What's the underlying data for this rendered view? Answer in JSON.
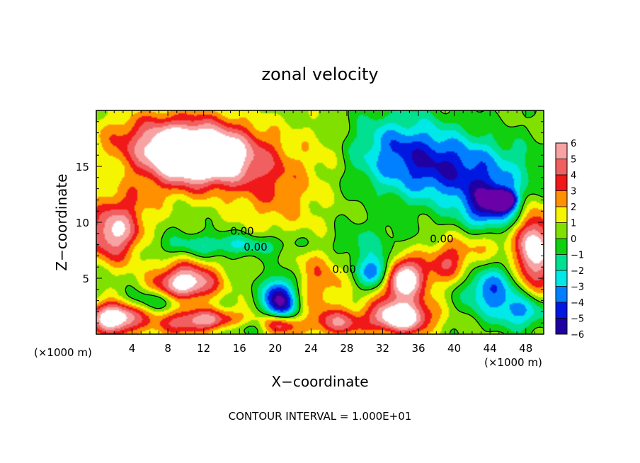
{
  "chart_data": {
    "type": "heatmap",
    "title": "zonal velocity",
    "xlabel": "X−coordinate",
    "ylabel": "Z−coordinate",
    "x_unit_label": "(×1000 m)",
    "z_unit_label": "(×1000 m)",
    "footer": "CONTOUR INTERVAL = 1.000E+01",
    "xlim": [
      0,
      50
    ],
    "ylim": [
      0,
      20
    ],
    "x_ticks": [
      4,
      8,
      12,
      16,
      20,
      24,
      28,
      32,
      36,
      40,
      44,
      48
    ],
    "y_ticks": [
      5,
      10,
      15
    ],
    "colorbar": {
      "levels": [
        6,
        5,
        4,
        3,
        2,
        1,
        0,
        -1,
        -2,
        -3,
        -4,
        -5,
        -6
      ],
      "colors": [
        "#f7a3a3",
        "#f06060",
        "#f01818",
        "#ff9000",
        "#f5f500",
        "#80e000",
        "#10d010",
        "#00e090",
        "#00e8e8",
        "#0080ff",
        "#0018e0",
        "#2000a0",
        "#7000b0"
      ],
      "under_color": "#6a00a8",
      "over_color": "#ffffff"
    },
    "contour_labels": [
      {
        "text": "0.00",
        "x": 16.3,
        "z": 9.2
      },
      {
        "text": "0.00",
        "x": 17.8,
        "z": 7.8
      },
      {
        "text": "0.00",
        "x": 27.7,
        "z": 5.8
      },
      {
        "text": "0.00",
        "x": 38.6,
        "z": 8.5
      }
    ],
    "features": [
      {
        "x": 11.5,
        "z": 15.5,
        "v": 8.0,
        "sx": 6.0,
        "sz": 2.5
      },
      {
        "x": 9.0,
        "z": 17.5,
        "v": 4.5,
        "sx": 8.0,
        "sz": 2.5
      },
      {
        "x": 20.0,
        "z": 13.0,
        "v": 2.5,
        "sx": 5.0,
        "sz": 4.0
      },
      {
        "x": 2.0,
        "z": 9.0,
        "v": 6.0,
        "sx": 3.0,
        "sz": 2.5
      },
      {
        "x": 10.0,
        "z": 4.5,
        "v": 7.0,
        "sx": 3.5,
        "sz": 1.8
      },
      {
        "x": 2.0,
        "z": 1.5,
        "v": 7.5,
        "sx": 3.0,
        "sz": 1.5
      },
      {
        "x": 12.0,
        "z": 1.0,
        "v": 6.0,
        "sx": 5.0,
        "sz": 1.2
      },
      {
        "x": 20.5,
        "z": 0.8,
        "v": 5.5,
        "sx": 2.0,
        "sz": 1.0
      },
      {
        "x": 27.0,
        "z": 1.0,
        "v": 4.0,
        "sx": 3.0,
        "sz": 1.2
      },
      {
        "x": 34.0,
        "z": 5.0,
        "v": 8.0,
        "sx": 2.8,
        "sz": 2.0
      },
      {
        "x": 34.0,
        "z": 1.5,
        "v": 7.5,
        "sx": 3.5,
        "sz": 1.5
      },
      {
        "x": 39.5,
        "z": 6.5,
        "v": 3.5,
        "sx": 2.5,
        "sz": 2.0
      },
      {
        "x": 49.0,
        "z": 7.5,
        "v": 7.0,
        "sx": 2.0,
        "sz": 3.5
      },
      {
        "x": 25.0,
        "z": 5.0,
        "v": 2.5,
        "sx": 3.0,
        "sz": 3.5
      },
      {
        "x": 20.5,
        "z": 3.0,
        "v": -7.0,
        "sx": 1.8,
        "sz": 2.0
      },
      {
        "x": 31.5,
        "z": 5.5,
        "v": -6.5,
        "sx": 2.0,
        "sz": 1.5
      },
      {
        "x": 40.0,
        "z": 14.5,
        "v": -4.5,
        "sx": 8.0,
        "sz": 3.0
      },
      {
        "x": 44.0,
        "z": 11.5,
        "v": -5.5,
        "sx": 3.0,
        "sz": 2.0
      },
      {
        "x": 45.5,
        "z": 12.0,
        "v": -8.0,
        "sx": 1.2,
        "sz": 0.7
      },
      {
        "x": 34.0,
        "z": 17.0,
        "v": -3.0,
        "sx": 6.0,
        "sz": 3.0
      },
      {
        "x": 15.0,
        "z": 8.0,
        "v": -2.5,
        "sx": 8.0,
        "sz": 1.0
      },
      {
        "x": 7.0,
        "z": 3.0,
        "v": -2.5,
        "sx": 5.0,
        "sz": 1.0
      },
      {
        "x": 44.0,
        "z": 4.0,
        "v": -4.0,
        "sx": 3.0,
        "sz": 2.0
      },
      {
        "x": 47.5,
        "z": 2.0,
        "v": -3.5,
        "sx": 3.0,
        "sz": 1.5
      },
      {
        "x": 30.0,
        "z": 8.0,
        "v": -1.5,
        "sx": 5.0,
        "sz": 2.0
      },
      {
        "x": 15.0,
        "z": 0.5,
        "v": -3.0,
        "sx": 4.0,
        "sz": 0.8
      },
      {
        "x": 4.0,
        "z": 12.0,
        "v": 1.5,
        "sx": 4.0,
        "sz": 2.0
      },
      {
        "x": 26.0,
        "z": 17.0,
        "v": 1.0,
        "sx": 3.0,
        "sz": 3.0
      },
      {
        "x": 44.0,
        "z": 8.0,
        "v": 1.5,
        "sx": 3.0,
        "sz": 1.5
      }
    ]
  }
}
